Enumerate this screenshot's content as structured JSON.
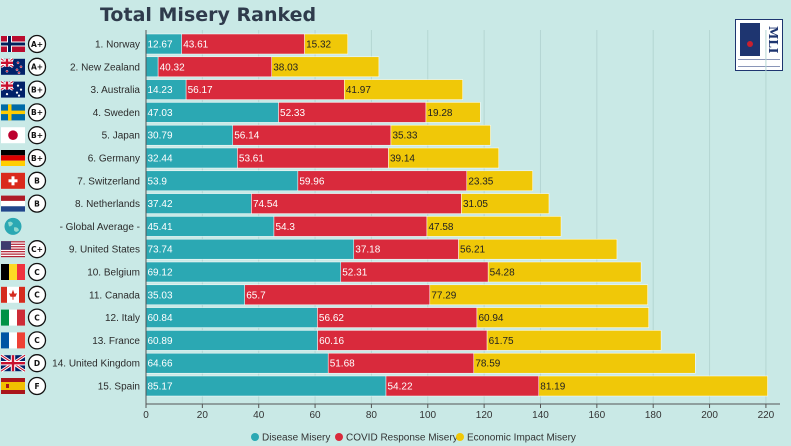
{
  "chart_data": {
    "type": "bar",
    "stacked": true,
    "orientation": "horizontal",
    "title": "Total Misery Ranked",
    "xlim": [
      0,
      225
    ],
    "xticks": [
      0,
      20,
      40,
      60,
      80,
      100,
      120,
      140,
      160,
      180,
      200,
      220
    ],
    "grid": true,
    "legend_position": "bottom",
    "categories": [
      "1. Norway",
      "2. New Zealand",
      "3. Australia",
      "4. Sweden",
      "5. Japan",
      "6. Germany",
      "7. Switzerland",
      "8. Netherlands",
      "- Global Average -",
      "9. United States",
      "10. Belgium",
      "11. Canada",
      "12. Italy",
      "13. France",
      "14. United Kingdom",
      "15. Spain"
    ],
    "grades": [
      "A+",
      "A+",
      "B+",
      "B+",
      "B+",
      "B+",
      "B",
      "B",
      "",
      "C+",
      "C",
      "C",
      "C",
      "C",
      "D",
      "F"
    ],
    "flags": [
      "norway",
      "new-zealand",
      "australia",
      "sweden",
      "japan",
      "germany",
      "switzerland",
      "netherlands",
      "globe",
      "united-states",
      "belgium",
      "canada",
      "italy",
      "france",
      "united-kingdom",
      "spain"
    ],
    "series": [
      {
        "name": "Disease Misery",
        "color": "#2ba8b3",
        "values": [
          12.67,
          4.3,
          14.23,
          47.03,
          30.79,
          32.44,
          53.9,
          37.42,
          45.41,
          73.74,
          69.12,
          35.03,
          60.84,
          60.89,
          64.66,
          85.17
        ],
        "labels": [
          "12.67",
          "",
          "14.23",
          "47.03",
          "30.79",
          "32.44",
          "53.9",
          "37.42",
          "45.41",
          "73.74",
          "69.12",
          "35.03",
          "60.84",
          "60.89",
          "64.66",
          "85.17"
        ]
      },
      {
        "name": "COVID Response Misery",
        "color": "#d92a3c",
        "values": [
          43.61,
          40.32,
          56.17,
          52.33,
          56.14,
          53.61,
          59.96,
          74.54,
          54.3,
          37.18,
          52.31,
          65.7,
          56.62,
          60.16,
          51.68,
          54.22
        ],
        "labels": [
          "43.61",
          "40.32",
          "56.17",
          "52.33",
          "56.14",
          "53.61",
          "59.96",
          "74.54",
          "54.3",
          "37.18",
          "52.31",
          "65.7",
          "56.62",
          "60.16",
          "51.68",
          "54.22"
        ]
      },
      {
        "name": "Economic Impact Misery",
        "color": "#f0c808",
        "values": [
          15.32,
          38.03,
          41.97,
          19.28,
          35.33,
          39.14,
          23.35,
          31.05,
          47.58,
          56.21,
          54.28,
          77.29,
          60.94,
          61.75,
          78.59,
          81.19
        ],
        "labels": [
          "15.32",
          "38.03",
          "41.97",
          "19.28",
          "35.33",
          "39.14",
          "23.35",
          "31.05",
          "47.58",
          "56.21",
          "54.28",
          "77.29",
          "60.94",
          "61.75",
          "78.59",
          "81.19"
        ]
      }
    ]
  },
  "logo": {
    "text": "MLI"
  }
}
